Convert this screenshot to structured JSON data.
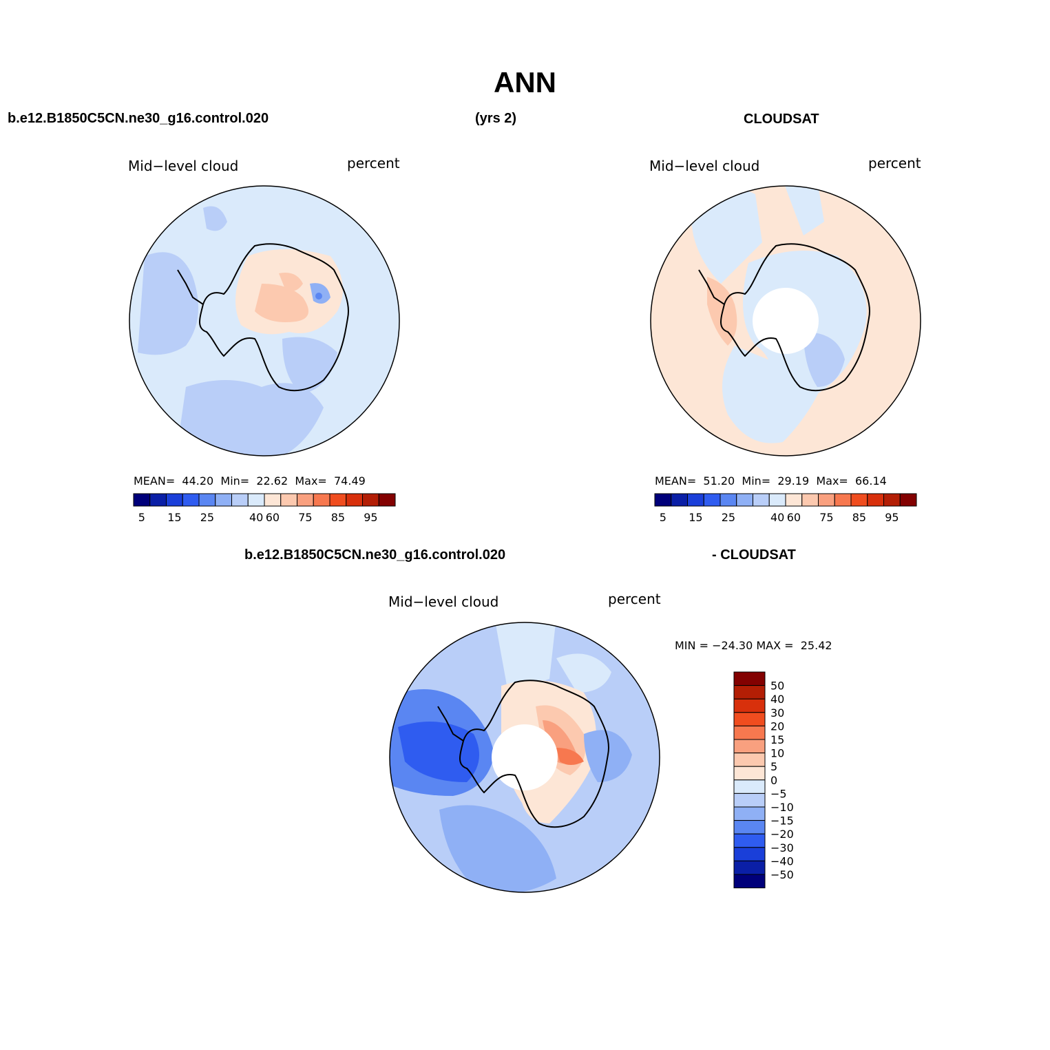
{
  "title": "ANN",
  "header": {
    "case_name": "b.e12.B1850C5CN.ne30_g16.control.020",
    "years": "(yrs 2)",
    "obs_name": "CLOUDSAT",
    "diff_case": "b.e12.B1850C5CN.ne30_g16.control.020",
    "diff_obs": "- CLOUDSAT"
  },
  "panels": {
    "model": {
      "label": "Mid−level cloud",
      "units": "percent",
      "mean_label": "MEAN=",
      "mean": "44.20",
      "min_label": "Min=",
      "min": "22.62",
      "max_label": "Max=",
      "max": "74.49"
    },
    "obs": {
      "label": "Mid−level cloud",
      "units": "percent",
      "mean_label": "MEAN=",
      "mean": "51.20",
      "min_label": "Min=",
      "min": "29.19",
      "max_label": "Max=",
      "max": "66.14"
    },
    "diff": {
      "label": "Mid−level cloud",
      "units": "percent",
      "minmax": "MIN = −24.30 MAX =  25.42"
    }
  },
  "colorbar": {
    "colors": [
      "#00007a",
      "#0a1fa6",
      "#1a3fd9",
      "#2f5cf0",
      "#5a86f2",
      "#8fb0f5",
      "#b9cef8",
      "#daeafb",
      "#fde6d6",
      "#fcc9af",
      "#f9a07f",
      "#f7784f",
      "#f04d1f",
      "#d8300c",
      "#b31e05",
      "#830101"
    ],
    "ticks": [
      "5",
      "15",
      "25",
      "40",
      "60",
      "75",
      "85",
      "95"
    ]
  },
  "diff_colorbar": {
    "colors": [
      "#830101",
      "#b31e05",
      "#d8300c",
      "#f04d1f",
      "#f7784f",
      "#f9a07f",
      "#fcc9af",
      "#fde6d6",
      "#daeafb",
      "#b9cef8",
      "#8fb0f5",
      "#5a86f2",
      "#2f5cf0",
      "#1a3fd9",
      "#0a1fa6",
      "#00007a"
    ],
    "ticks": [
      "50",
      "40",
      "30",
      "20",
      "15",
      "10",
      "5",
      "0",
      "−5",
      "−10",
      "−15",
      "−20",
      "−30",
      "−40",
      "−50"
    ]
  }
}
